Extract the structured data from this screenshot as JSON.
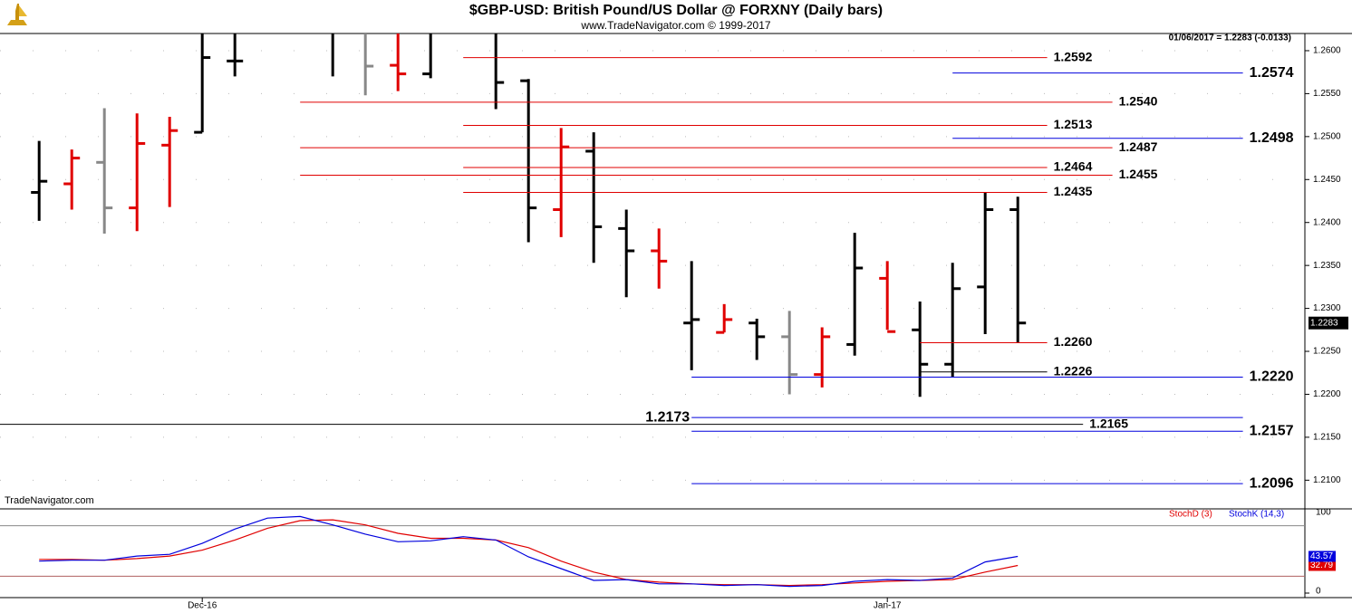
{
  "title": "$GBP-USD:  British Pound/US Dollar @ FORXNY  (Daily bars)",
  "subtitle": "www.TradeNavigator.com © 1999-2017",
  "chart_data": [
    {
      "type": "ohlc",
      "header": "01/06/2017 = 1.2283 (-0.0133)",
      "watermark": "TradeNavigator.com",
      "xlim": [
        -1.2,
        38.8
      ],
      "ylim": [
        1.2074,
        1.262
      ],
      "grid": true,
      "yticks": [
        {
          "value": 1.21,
          "label": "1.2100"
        },
        {
          "value": 1.215,
          "label": "1.2150"
        },
        {
          "value": 1.22,
          "label": "1.2200"
        },
        {
          "value": 1.225,
          "label": "1.2250"
        },
        {
          "value": 1.23,
          "label": "1.2300"
        },
        {
          "value": 1.235,
          "label": "1.2350"
        },
        {
          "value": 1.24,
          "label": "1.2400"
        },
        {
          "value": 1.245,
          "label": "1.2450"
        },
        {
          "value": 1.25,
          "label": "1.2500"
        },
        {
          "value": 1.255,
          "label": "1.2550"
        },
        {
          "value": 1.26,
          "label": "1.2600"
        }
      ],
      "bars": {
        "x": [
          0,
          1,
          2,
          3,
          4,
          5,
          6,
          9,
          10,
          11,
          12,
          14,
          15,
          16,
          17,
          18,
          19,
          20,
          21,
          22,
          23,
          24,
          25,
          26,
          27,
          28,
          29,
          30
        ],
        "open": [
          1.2435,
          1.2445,
          1.247,
          1.2417,
          1.249,
          1.2505,
          1.2588,
          1.263,
          1.263,
          1.2583,
          1.2573,
          1.263,
          1.2565,
          1.2415,
          1.2483,
          1.2393,
          1.2367,
          1.2283,
          1.2272,
          1.2283,
          1.2267,
          1.2223,
          1.2258,
          1.2335,
          1.2275,
          1.2235,
          1.2325,
          1.2415
        ],
        "high": [
          1.2495,
          1.2485,
          1.2533,
          1.2527,
          1.2523,
          1.264,
          1.264,
          1.266,
          1.265,
          1.264,
          1.264,
          1.265,
          1.2567,
          1.251,
          1.2505,
          1.2415,
          1.2393,
          1.2355,
          1.2305,
          1.2288,
          1.2297,
          1.2278,
          1.2388,
          1.2355,
          1.2308,
          1.2353,
          1.2435,
          1.243
        ],
        "low": [
          1.2402,
          1.2415,
          1.2387,
          1.239,
          1.2418,
          1.2505,
          1.257,
          1.257,
          1.2548,
          1.2553,
          1.2568,
          1.2532,
          1.2377,
          1.2383,
          1.2353,
          1.2313,
          1.2323,
          1.2228,
          1.2272,
          1.224,
          1.22,
          1.2208,
          1.2245,
          1.2275,
          1.2197,
          1.222,
          1.227,
          1.226
        ],
        "close": [
          1.2448,
          1.2475,
          1.2417,
          1.2492,
          1.2507,
          1.2592,
          1.2588,
          1.2625,
          1.2582,
          1.2573,
          1.263,
          1.2563,
          1.2417,
          1.2488,
          1.2395,
          1.2367,
          1.2355,
          1.2287,
          1.2287,
          1.2267,
          1.2223,
          1.2267,
          1.2347,
          1.2273,
          1.2235,
          1.2323,
          1.2415,
          1.2283
        ],
        "colors": [
          "#000000",
          "#e00000",
          "#888888",
          "#e00000",
          "#e00000",
          "#000000",
          "#000000",
          "#000000",
          "#888888",
          "#e00000",
          "#000000",
          "#000000",
          "#000000",
          "#e00000",
          "#000000",
          "#000000",
          "#e00000",
          "#000000",
          "#e00000",
          "#000000",
          "#888888",
          "#e00000",
          "#000000",
          "#e00000",
          "#000000",
          "#000000",
          "#000000",
          "#000000"
        ]
      },
      "levels": [
        {
          "value": 1.2592,
          "label": "1.2592",
          "color": "#e00000",
          "x_start": 13,
          "x_end": 30.9
        },
        {
          "value": 1.2574,
          "label": "1.2574",
          "color": "#0000dd",
          "x_start": 28,
          "x_end": 36.9
        },
        {
          "value": 1.254,
          "label": "1.2540",
          "color": "#e00000",
          "x_start": 8,
          "x_end": 32.9
        },
        {
          "value": 1.2513,
          "label": "1.2513",
          "color": "#e00000",
          "x_start": 13,
          "x_end": 30.9
        },
        {
          "value": 1.2498,
          "label": "1.2498",
          "color": "#0000dd",
          "x_start": 28,
          "x_end": 36.9
        },
        {
          "value": 1.2487,
          "label": "1.2487",
          "color": "#e00000",
          "x_start": 8,
          "x_end": 32.9
        },
        {
          "value": 1.2464,
          "label": "1.2464",
          "color": "#e00000",
          "x_start": 13,
          "x_end": 30.9
        },
        {
          "value": 1.2455,
          "label": "1.2455",
          "color": "#e00000",
          "x_start": 8,
          "x_end": 32.9
        },
        {
          "value": 1.2435,
          "label": "1.2435",
          "color": "#e00000",
          "x_start": 13,
          "x_end": 30.9
        },
        {
          "value": 1.226,
          "label": "1.2260",
          "color": "#e00000",
          "x_start": 27,
          "x_end": 30.9
        },
        {
          "value": 1.2226,
          "label": "1.2226",
          "color": "#000000",
          "x_start": 27,
          "x_end": 30.9
        },
        {
          "value": 1.222,
          "label": "1.2220",
          "color": "#0000dd",
          "x_start": 20,
          "x_end": 36.9
        },
        {
          "value": 1.2173,
          "label": "1.2173",
          "color": "#0000dd",
          "x_start": 20,
          "x_end": 36.9,
          "label_side": "left"
        },
        {
          "value": 1.2165,
          "label": "1.2165",
          "color": "#000000",
          "x_start": -1.2,
          "x_end": 32
        },
        {
          "value": 1.2157,
          "label": "1.2157",
          "color": "#0000dd",
          "x_start": 20,
          "x_end": 36.9
        },
        {
          "value": 1.2096,
          "label": "1.2096",
          "color": "#0000dd",
          "x_start": 20,
          "x_end": 36.9
        }
      ]
    },
    {
      "type": "line",
      "xlim": [
        -1.2,
        38.8
      ],
      "ylim": [
        0,
        100
      ],
      "yticks": [
        0,
        100
      ],
      "reference_lines": [
        20,
        80
      ],
      "xticks": [
        {
          "value": 5,
          "label": "Dec-16"
        },
        {
          "value": 26,
          "label": "Jan-17"
        }
      ],
      "x": [
        0,
        1,
        2,
        3,
        4,
        5,
        6,
        7,
        8,
        9,
        10,
        11,
        12,
        13,
        14,
        15,
        16,
        17,
        18,
        19,
        20,
        21,
        22,
        23,
        24,
        25,
        26,
        27,
        28,
        29,
        30
      ],
      "series": [
        {
          "name": "StochD (3)",
          "color": "#e00000",
          "values": [
            40,
            40,
            39,
            41,
            44,
            51,
            63,
            77,
            86,
            87,
            81,
            71,
            65,
            65,
            63,
            54,
            38,
            25,
            16,
            13,
            11,
            10,
            10,
            9,
            10,
            12,
            14,
            15,
            16,
            25,
            32.79
          ]
        },
        {
          "name": "StochK (14,3)",
          "color": "#0000dd",
          "values": [
            38,
            39,
            39,
            44,
            46,
            59,
            76,
            89,
            91,
            81,
            70,
            61,
            62,
            67,
            63,
            43,
            29,
            15,
            16,
            11,
            11,
            9,
            10,
            8,
            9,
            14,
            16,
            15,
            18,
            37,
            43.57
          ]
        }
      ]
    }
  ]
}
